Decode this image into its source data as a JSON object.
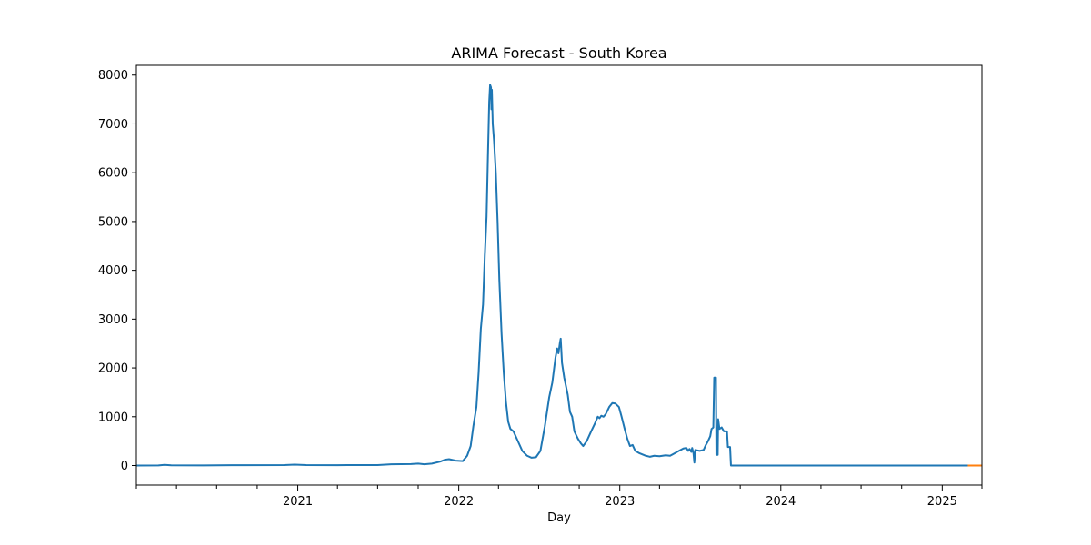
{
  "chart_data": {
    "type": "line",
    "title": "ARIMA Forecast - South Korea",
    "xlabel": "Day",
    "ylabel": "",
    "x_axis_type": "date",
    "xlim": [
      "2020-01-01",
      "2025-04-01"
    ],
    "ylim": [
      -400,
      8200
    ],
    "y_ticks": [
      0,
      1000,
      2000,
      3000,
      4000,
      5000,
      6000,
      7000,
      8000
    ],
    "x_ticks": [
      {
        "date": "2021-01-01",
        "label": "2021"
      },
      {
        "date": "2022-01-01",
        "label": "2022"
      },
      {
        "date": "2023-01-01",
        "label": "2023"
      },
      {
        "date": "2024-01-01",
        "label": "2024"
      },
      {
        "date": "2025-01-01",
        "label": "2025"
      }
    ],
    "grid": false,
    "series": [
      {
        "color": "#1f77b4",
        "points": [
          [
            "2020-01-01",
            0
          ],
          [
            "2020-02-20",
            2
          ],
          [
            "2020-03-05",
            15
          ],
          [
            "2020-03-20",
            5
          ],
          [
            "2020-06-01",
            2
          ],
          [
            "2020-09-01",
            8
          ],
          [
            "2020-12-01",
            10
          ],
          [
            "2020-12-25",
            20
          ],
          [
            "2021-01-20",
            10
          ],
          [
            "2021-04-01",
            8
          ],
          [
            "2021-07-01",
            10
          ],
          [
            "2021-08-01",
            25
          ],
          [
            "2021-09-15",
            30
          ],
          [
            "2021-10-01",
            40
          ],
          [
            "2021-10-15",
            25
          ],
          [
            "2021-11-01",
            40
          ],
          [
            "2021-11-20",
            80
          ],
          [
            "2021-12-01",
            120
          ],
          [
            "2021-12-10",
            130
          ],
          [
            "2021-12-25",
            100
          ],
          [
            "2022-01-10",
            90
          ],
          [
            "2022-01-20",
            200
          ],
          [
            "2022-01-28",
            400
          ],
          [
            "2022-02-03",
            800
          ],
          [
            "2022-02-10",
            1200
          ],
          [
            "2022-02-15",
            1900
          ],
          [
            "2022-02-20",
            2800
          ],
          [
            "2022-02-25",
            3300
          ],
          [
            "2022-03-01",
            4300
          ],
          [
            "2022-03-05",
            5100
          ],
          [
            "2022-03-08",
            6300
          ],
          [
            "2022-03-11",
            7450
          ],
          [
            "2022-03-13",
            7800
          ],
          [
            "2022-03-15",
            7750
          ],
          [
            "2022-03-16",
            7300
          ],
          [
            "2022-03-17",
            7700
          ],
          [
            "2022-03-19",
            7000
          ],
          [
            "2022-03-22",
            6650
          ],
          [
            "2022-03-26",
            6000
          ],
          [
            "2022-03-30",
            5000
          ],
          [
            "2022-04-03",
            3800
          ],
          [
            "2022-04-08",
            2700
          ],
          [
            "2022-04-13",
            1900
          ],
          [
            "2022-04-18",
            1300
          ],
          [
            "2022-04-23",
            900
          ],
          [
            "2022-04-28",
            750
          ],
          [
            "2022-05-05",
            700
          ],
          [
            "2022-05-15",
            500
          ],
          [
            "2022-05-25",
            300
          ],
          [
            "2022-06-05",
            200
          ],
          [
            "2022-06-15",
            160
          ],
          [
            "2022-06-25",
            170
          ],
          [
            "2022-07-05",
            300
          ],
          [
            "2022-07-15",
            800
          ],
          [
            "2022-07-25",
            1400
          ],
          [
            "2022-08-01",
            1700
          ],
          [
            "2022-08-08",
            2200
          ],
          [
            "2022-08-12",
            2400
          ],
          [
            "2022-08-15",
            2300
          ],
          [
            "2022-08-18",
            2500
          ],
          [
            "2022-08-20",
            2600
          ],
          [
            "2022-08-23",
            2100
          ],
          [
            "2022-08-28",
            1800
          ],
          [
            "2022-09-05",
            1450
          ],
          [
            "2022-09-10",
            1100
          ],
          [
            "2022-09-15",
            1000
          ],
          [
            "2022-09-20",
            700
          ],
          [
            "2022-09-28",
            550
          ],
          [
            "2022-10-05",
            450
          ],
          [
            "2022-10-10",
            400
          ],
          [
            "2022-10-18",
            500
          ],
          [
            "2022-10-28",
            700
          ],
          [
            "2022-11-05",
            850
          ],
          [
            "2022-11-12",
            1000
          ],
          [
            "2022-11-16",
            970
          ],
          [
            "2022-11-20",
            1020
          ],
          [
            "2022-11-25",
            1000
          ],
          [
            "2022-11-30",
            1050
          ],
          [
            "2022-12-08",
            1200
          ],
          [
            "2022-12-15",
            1280
          ],
          [
            "2022-12-22",
            1270
          ],
          [
            "2022-12-30",
            1200
          ],
          [
            "2023-01-05",
            1000
          ],
          [
            "2023-01-12",
            750
          ],
          [
            "2023-01-18",
            550
          ],
          [
            "2023-01-24",
            400
          ],
          [
            "2023-01-30",
            420
          ],
          [
            "2023-02-05",
            300
          ],
          [
            "2023-02-15",
            250
          ],
          [
            "2023-03-01",
            200
          ],
          [
            "2023-03-10",
            180
          ],
          [
            "2023-03-20",
            200
          ],
          [
            "2023-04-01",
            190
          ],
          [
            "2023-04-15",
            210
          ],
          [
            "2023-04-25",
            200
          ],
          [
            "2023-05-05",
            250
          ],
          [
            "2023-05-15",
            300
          ],
          [
            "2023-05-25",
            350
          ],
          [
            "2023-06-01",
            360
          ],
          [
            "2023-06-05",
            300
          ],
          [
            "2023-06-08",
            340
          ],
          [
            "2023-06-12",
            280
          ],
          [
            "2023-06-14",
            360
          ],
          [
            "2023-06-17",
            250
          ],
          [
            "2023-06-19",
            60
          ],
          [
            "2023-06-21",
            320
          ],
          [
            "2023-07-01",
            300
          ],
          [
            "2023-07-10",
            320
          ],
          [
            "2023-07-15",
            420
          ],
          [
            "2023-07-20",
            500
          ],
          [
            "2023-07-25",
            600
          ],
          [
            "2023-07-28",
            750
          ],
          [
            "2023-08-01",
            780
          ],
          [
            "2023-08-03",
            1800
          ],
          [
            "2023-08-07",
            1800
          ],
          [
            "2023-08-08",
            220
          ],
          [
            "2023-08-11",
            220
          ],
          [
            "2023-08-12",
            950
          ],
          [
            "2023-08-15",
            750
          ],
          [
            "2023-08-20",
            780
          ],
          [
            "2023-08-25",
            700
          ],
          [
            "2023-09-01",
            700
          ],
          [
            "2023-09-03",
            380
          ],
          [
            "2023-09-08",
            380
          ],
          [
            "2023-09-10",
            0
          ],
          [
            "2023-12-01",
            0
          ],
          [
            "2024-06-01",
            0
          ],
          [
            "2025-02-28",
            0
          ]
        ]
      },
      {
        "color": "#ff7f0e",
        "points": [
          [
            "2025-02-28",
            0
          ],
          [
            "2025-04-01",
            0
          ]
        ]
      }
    ]
  }
}
